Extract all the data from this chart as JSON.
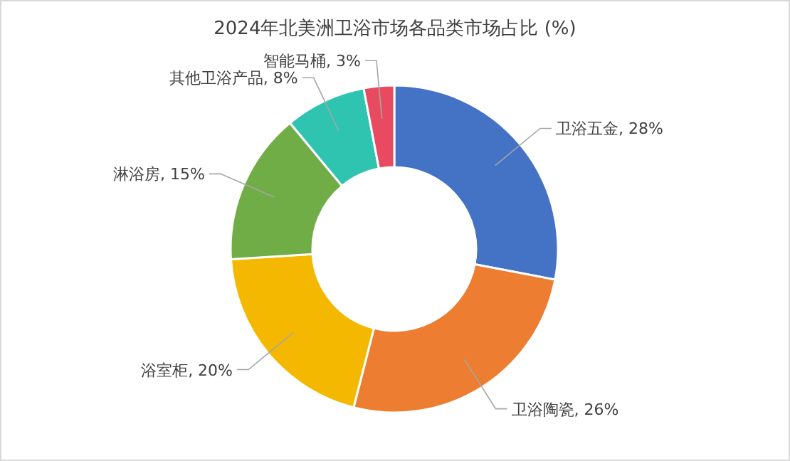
{
  "chart_data": {
    "type": "donut",
    "title": "2024年北美洲卫浴市场各品类市场占比 (%)",
    "categories": [
      "卫浴五金",
      "卫浴陶瓷",
      "浴室柜",
      "淋浴房",
      "其他卫浴产品",
      "智能马桶"
    ],
    "values": [
      28,
      26,
      20,
      15,
      8,
      3
    ],
    "colors": [
      "#4472c4",
      "#ed7d31",
      "#f5b800",
      "#70ad47",
      "#2ec4b0",
      "#e84a5f"
    ],
    "value_labels": [
      "28%",
      "26%",
      "20%",
      "15%",
      "8%",
      "3%"
    ],
    "legend": false
  }
}
